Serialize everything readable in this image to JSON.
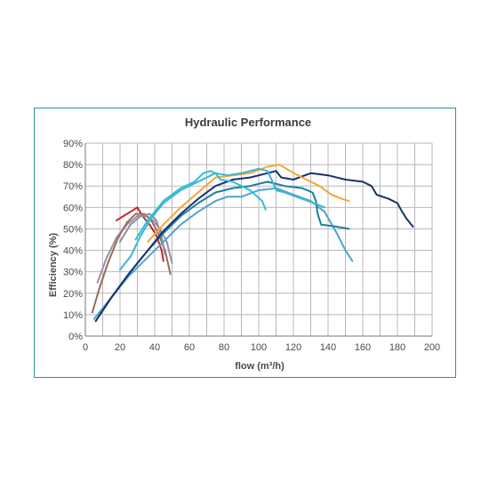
{
  "chart_data": {
    "type": "line",
    "title": "Hydraulic Performance",
    "xlabel": "flow (m³/h)",
    "ylabel": "Efficiency (%)",
    "xlim": [
      0,
      200
    ],
    "ylim": [
      0,
      90
    ],
    "x_ticks": [
      "0",
      "20",
      "40",
      "60",
      "80",
      "100",
      "120",
      "140",
      "160",
      "180",
      "200"
    ],
    "y_ticks": [
      "0%",
      "10%",
      "20%",
      "30%",
      "40%",
      "50%",
      "60%",
      "70%",
      "80%",
      "90%"
    ],
    "grid": true,
    "legend": "none",
    "series": [
      {
        "color": "#c0272d",
        "points": [
          [
            18,
            54
          ],
          [
            22,
            56
          ],
          [
            26,
            58
          ],
          [
            30,
            60
          ],
          [
            33,
            56
          ],
          [
            37,
            52
          ],
          [
            41,
            47
          ],
          [
            44,
            40
          ],
          [
            45,
            35
          ]
        ]
      },
      {
        "color": "#9a8fa8",
        "points": [
          [
            7,
            25
          ],
          [
            12,
            36
          ],
          [
            18,
            46
          ],
          [
            24,
            52
          ],
          [
            30,
            56
          ],
          [
            35,
            56
          ],
          [
            39,
            54
          ],
          [
            43,
            50
          ],
          [
            47,
            44
          ],
          [
            50,
            34
          ]
        ]
      },
      {
        "color": "#9a6b5b",
        "points": [
          [
            4,
            11
          ],
          [
            8,
            22
          ],
          [
            13,
            34
          ],
          [
            19,
            46
          ],
          [
            24,
            53
          ],
          [
            29,
            57
          ],
          [
            34,
            57
          ],
          [
            38,
            54
          ],
          [
            42,
            48
          ],
          [
            46,
            40
          ],
          [
            49,
            29
          ]
        ]
      },
      {
        "color": "#8b8f9c",
        "points": [
          [
            20,
            44
          ],
          [
            26,
            52
          ],
          [
            32,
            56
          ],
          [
            37,
            57
          ],
          [
            41,
            54
          ],
          [
            44,
            46
          ],
          [
            46,
            38
          ]
        ]
      },
      {
        "color": "#4fa3cf",
        "points": [
          [
            5,
            8
          ],
          [
            15,
            18
          ],
          [
            25,
            28
          ],
          [
            35,
            36
          ],
          [
            45,
            44
          ],
          [
            55,
            52
          ],
          [
            65,
            58
          ],
          [
            75,
            63
          ],
          [
            82,
            65
          ],
          [
            90,
            65
          ],
          [
            100,
            68
          ],
          [
            110,
            69
          ],
          [
            120,
            66
          ],
          [
            130,
            63
          ],
          [
            138,
            58
          ],
          [
            145,
            48
          ],
          [
            150,
            40
          ],
          [
            154,
            35
          ]
        ]
      },
      {
        "color": "#1a7f9e",
        "points": [
          [
            6,
            7
          ],
          [
            15,
            18
          ],
          [
            25,
            29
          ],
          [
            35,
            39
          ],
          [
            45,
            48
          ],
          [
            55,
            56
          ],
          [
            65,
            62
          ],
          [
            75,
            67
          ],
          [
            85,
            69
          ],
          [
            95,
            70
          ],
          [
            105,
            72
          ],
          [
            115,
            70
          ],
          [
            125,
            69
          ],
          [
            131,
            67
          ],
          [
            133,
            63
          ],
          [
            134,
            57
          ],
          [
            136,
            52
          ],
          [
            145,
            51
          ],
          [
            152,
            50
          ]
        ]
      },
      {
        "color": "#1b2f6e",
        "points": [
          [
            6,
            7
          ],
          [
            15,
            18
          ],
          [
            25,
            29
          ],
          [
            35,
            39
          ],
          [
            45,
            49
          ],
          [
            55,
            57
          ],
          [
            65,
            64
          ],
          [
            75,
            70
          ],
          [
            85,
            73
          ],
          [
            95,
            74
          ],
          [
            105,
            76
          ],
          [
            110,
            77
          ],
          [
            113,
            74
          ],
          [
            120,
            73
          ],
          [
            130,
            76
          ],
          [
            140,
            75
          ],
          [
            150,
            73
          ],
          [
            160,
            72
          ],
          [
            165,
            70
          ],
          [
            168,
            66
          ],
          [
            175,
            64
          ],
          [
            180,
            62
          ],
          [
            182,
            59
          ],
          [
            185,
            55
          ],
          [
            189,
            51
          ]
        ]
      },
      {
        "color": "#f6a636",
        "points": [
          [
            36,
            44
          ],
          [
            45,
            52
          ],
          [
            55,
            60
          ],
          [
            65,
            67
          ],
          [
            75,
            74
          ],
          [
            85,
            75
          ],
          [
            95,
            76
          ],
          [
            105,
            79
          ],
          [
            112,
            80
          ],
          [
            118,
            77
          ],
          [
            125,
            74
          ],
          [
            135,
            70
          ],
          [
            142,
            66
          ],
          [
            148,
            64
          ],
          [
            152,
            63
          ]
        ]
      },
      {
        "color": "#3cb6d1",
        "points": [
          [
            20,
            31
          ],
          [
            26,
            37
          ],
          [
            32,
            47
          ],
          [
            38,
            55
          ],
          [
            45,
            62
          ],
          [
            55,
            68
          ],
          [
            65,
            72
          ],
          [
            75,
            76
          ],
          [
            82,
            75
          ],
          [
            90,
            76
          ],
          [
            100,
            78
          ],
          [
            105,
            77
          ],
          [
            108,
            72
          ],
          [
            110,
            68
          ],
          [
            115,
            67
          ],
          [
            125,
            64
          ],
          [
            132,
            62
          ],
          [
            138,
            60
          ]
        ]
      },
      {
        "color": "#2cc0d6",
        "points": [
          [
            29,
            45
          ],
          [
            36,
            54
          ],
          [
            45,
            63
          ],
          [
            55,
            69
          ],
          [
            63,
            72
          ],
          [
            68,
            76
          ],
          [
            72,
            77
          ],
          [
            75,
            76
          ],
          [
            78,
            73
          ],
          [
            85,
            72
          ],
          [
            95,
            68
          ],
          [
            102,
            63
          ],
          [
            104,
            59
          ]
        ]
      }
    ]
  }
}
